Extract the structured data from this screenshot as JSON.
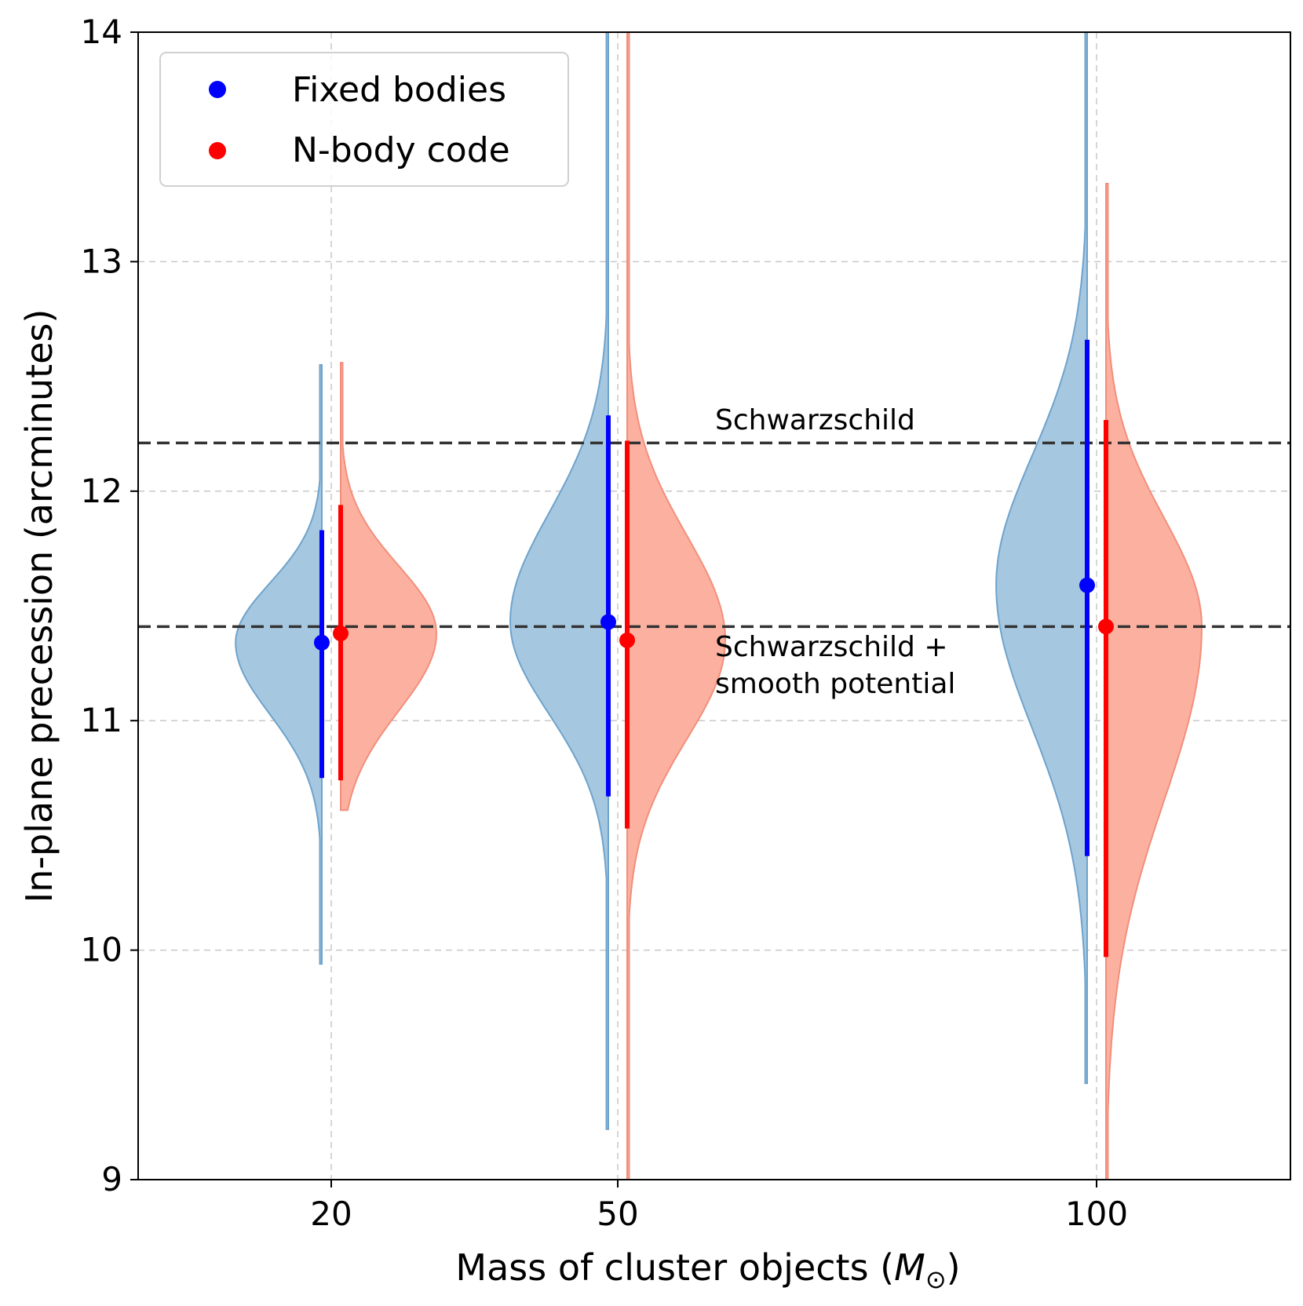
{
  "chart_data": {
    "type": "violin",
    "xlabel": "Mass of cluster objects (",
    "xlabel_symbol": "M",
    "xlabel_subscript": "⊙",
    "xlabel_close": ")",
    "ylabel": "In-plane precession (arcminutes)",
    "ylim": [
      9,
      14
    ],
    "yticks": [
      "9",
      "10",
      "11",
      "12",
      "13",
      "14"
    ],
    "categories": [
      "20",
      "50",
      "100"
    ],
    "grid": true,
    "legend_position": "top-left",
    "series": [
      {
        "name": "Fixed bodies",
        "marker_color": "#0000ff",
        "fill_color": "#a6c7e0",
        "stroke_color": "#6ea3cc",
        "medians": [
          11.34,
          11.43,
          11.59
        ],
        "intervals": [
          [
            10.75,
            11.83
          ],
          [
            10.67,
            12.33
          ],
          [
            10.41,
            12.66
          ]
        ],
        "ranges": [
          [
            9.94,
            12.55
          ],
          [
            9.22,
            14.0
          ],
          [
            9.42,
            14.0
          ]
        ],
        "widths": [
          0.9,
          1.0,
          0.95
        ]
      },
      {
        "name": "N-body code",
        "marker_color": "#ff0000",
        "fill_color": "#fcb1a0",
        "stroke_color": "#f28e7b",
        "medians": [
          11.38,
          11.35,
          11.41
        ],
        "intervals": [
          [
            10.74,
            11.94
          ],
          [
            10.53,
            12.22
          ],
          [
            9.97,
            12.31
          ]
        ],
        "ranges": [
          [
            10.61,
            12.56
          ],
          [
            9.0,
            14.0
          ],
          [
            9.0,
            13.34
          ]
        ],
        "widths": [
          1.0,
          1.0,
          1.0
        ]
      }
    ],
    "reference_lines": [
      {
        "label": "Schwarzschild",
        "value": 12.21
      },
      {
        "label_line1": "Schwarzschild +",
        "label_line2": "smooth potential",
        "value": 11.41
      }
    ]
  }
}
